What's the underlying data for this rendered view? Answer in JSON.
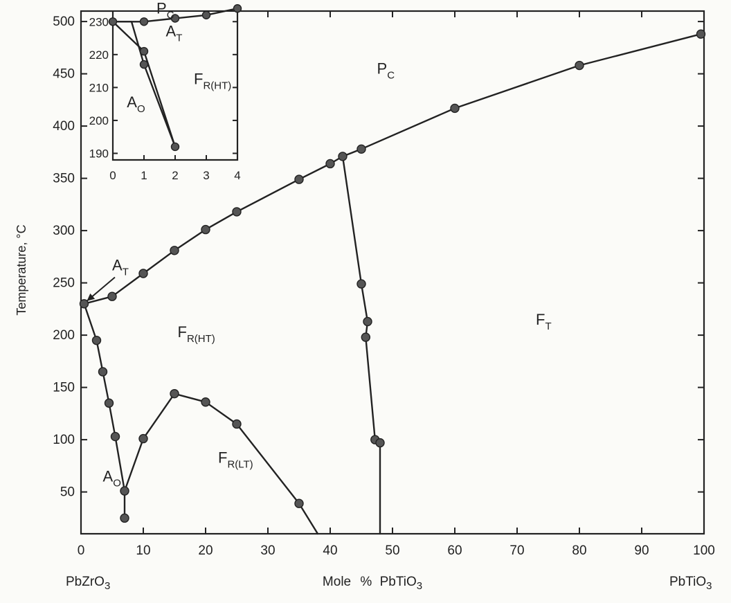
{
  "chart_data": [
    {
      "type": "scatter",
      "title": "",
      "xlabel": "Mole % PbTiO3",
      "xlabel_parts": [
        "Mole",
        "%",
        "PbTi",
        "O",
        "3"
      ],
      "ylabel": "Temperature, °C",
      "xlim": [
        0,
        100
      ],
      "ylim": [
        10,
        510
      ],
      "xticks": [
        0,
        10,
        20,
        30,
        40,
        50,
        60,
        70,
        80,
        90,
        100
      ],
      "yticks": [
        50,
        100,
        150,
        200,
        250,
        300,
        350,
        400,
        450,
        500
      ],
      "end_labels": {
        "left": {
          "base": "PbZrO",
          "sub": "3"
        },
        "right": {
          "base": "PbTiO",
          "sub": "3"
        }
      },
      "series": [
        {
          "points": [
            [
              0.5,
              230
            ],
            [
              5,
              237
            ],
            [
              10,
              259
            ],
            [
              15,
              281
            ],
            [
              20,
              301
            ],
            [
              25,
              318
            ],
            [
              35,
              349
            ],
            [
              40,
              364
            ],
            [
              42,
              371
            ],
            [
              45,
              378
            ],
            [
              60,
              417
            ],
            [
              80,
              458
            ],
            [
              99.5,
              488
            ]
          ]
        },
        {
          "points": [
            [
              42,
              371
            ],
            [
              45,
              249
            ],
            [
              46,
              213
            ],
            [
              45.7,
              198
            ],
            [
              47.2,
              100
            ],
            [
              48,
              97
            ],
            [
              48,
              10
            ]
          ]
        },
        {
          "points": [
            [
              0.5,
              230
            ],
            [
              2.5,
              195
            ],
            [
              3.5,
              165
            ],
            [
              4.5,
              135
            ],
            [
              5.5,
              103
            ],
            [
              7,
              51
            ],
            [
              7,
              25
            ]
          ]
        },
        {
          "points": [
            [
              7,
              51
            ],
            [
              10,
              101
            ],
            [
              15,
              144
            ],
            [
              20,
              136
            ],
            [
              25,
              115
            ],
            [
              35,
              39
            ],
            [
              38,
              10
            ]
          ]
        }
      ],
      "annotations": [
        {
          "text": "P",
          "sub": "C",
          "x": 47.5,
          "y": 450
        },
        {
          "text": "F",
          "sub": "T",
          "x": 73,
          "y": 210
        },
        {
          "text": "F",
          "sub": "R(HT)",
          "x": 15.5,
          "y": 198
        },
        {
          "text": "F",
          "sub": "R(LT)",
          "x": 22,
          "y": 78
        },
        {
          "text": "A",
          "sub": "O",
          "x": 3.5,
          "y": 60
        },
        {
          "text": "A",
          "sub": "T",
          "x": 5,
          "y": 262,
          "arrow_to": [
            0.5,
            230
          ]
        }
      ]
    },
    {
      "type": "scatter",
      "title": "",
      "xlim": [
        0,
        4
      ],
      "ylim": [
        188,
        233
      ],
      "xticks": [
        0,
        1,
        2,
        3,
        4
      ],
      "yticks": [
        190,
        200,
        210,
        220,
        230
      ],
      "series": [
        {
          "points": [
            [
              0,
              230
            ],
            [
              1,
              230
            ],
            [
              2,
              231
            ],
            [
              3,
              232
            ],
            [
              4,
              234
            ]
          ]
        },
        {
          "points": [
            [
              0,
              230
            ],
            [
              1,
              221
            ],
            [
              2,
              192
            ]
          ]
        },
        {
          "points": [
            [
              0,
              230
            ],
            [
              0.6,
              230
            ],
            [
              1,
              217
            ],
            [
              2,
              192
            ]
          ]
        }
      ],
      "annotations": [
        {
          "text": "P",
          "sub": "C",
          "x": 1.4,
          "y": 232.5
        },
        {
          "text": "A",
          "sub": "T",
          "x": 1.7,
          "y": 225.5
        },
        {
          "text": "F",
          "sub": "R(HT)",
          "x": 2.6,
          "y": 211
        },
        {
          "text": "A",
          "sub": "O",
          "x": 0.45,
          "y": 204
        }
      ]
    }
  ]
}
